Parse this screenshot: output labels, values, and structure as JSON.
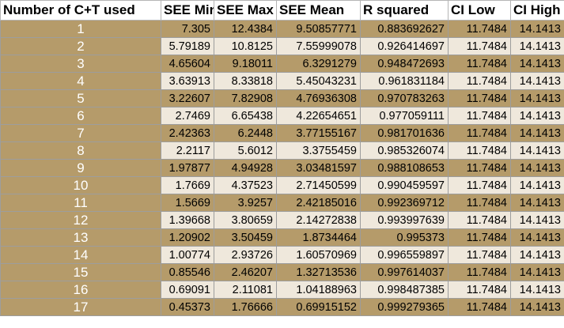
{
  "columns": [
    "Number of C+T used",
    "SEE Min",
    "SEE Max",
    "SEE Mean",
    "R squared",
    "CI Low",
    "CI High"
  ],
  "rows": [
    [
      "1",
      "7.305",
      "12.4384",
      "9.50857771",
      "0.883692627",
      "11.7484",
      "14.1413"
    ],
    [
      "2",
      "5.79189",
      "10.8125",
      "7.55999078",
      "0.926414697",
      "11.7484",
      "14.1413"
    ],
    [
      "3",
      "4.65604",
      "9.18011",
      "6.3291279",
      "0.948472693",
      "11.7484",
      "14.1413"
    ],
    [
      "4",
      "3.63913",
      "8.33818",
      "5.45043231",
      "0.961831184",
      "11.7484",
      "14.1413"
    ],
    [
      "5",
      "3.22607",
      "7.82908",
      "4.76936308",
      "0.970783263",
      "11.7484",
      "14.1413"
    ],
    [
      "6",
      "2.7469",
      "6.65438",
      "4.22654651",
      "0.977059111",
      "11.7484",
      "14.1413"
    ],
    [
      "7",
      "2.42363",
      "6.2448",
      "3.77155167",
      "0.981701636",
      "11.7484",
      "14.1413"
    ],
    [
      "8",
      "2.2117",
      "5.6012",
      "3.3755459",
      "0.985326074",
      "11.7484",
      "14.1413"
    ],
    [
      "9",
      "1.97877",
      "4.94928",
      "3.03481597",
      "0.988108653",
      "11.7484",
      "14.1413"
    ],
    [
      "10",
      "1.7669",
      "4.37523",
      "2.71450599",
      "0.990459597",
      "11.7484",
      "14.1413"
    ],
    [
      "11",
      "1.5669",
      "3.9257",
      "2.42185016",
      "0.992369712",
      "11.7484",
      "14.1413"
    ],
    [
      "12",
      "1.39668",
      "3.80659",
      "2.14272838",
      "0.993997639",
      "11.7484",
      "14.1413"
    ],
    [
      "13",
      "1.20902",
      "3.50459",
      "1.8734464",
      "0.995373",
      "11.7484",
      "14.1413"
    ],
    [
      "14",
      "1.00774",
      "2.93726",
      "1.60570969",
      "0.996559897",
      "11.7484",
      "14.1413"
    ],
    [
      "15",
      "0.85546",
      "2.46207",
      "1.32713536",
      "0.997614037",
      "11.7484",
      "14.1413"
    ],
    [
      "16",
      "0.69091",
      "2.11081",
      "1.04188963",
      "0.998487385",
      "11.7484",
      "14.1413"
    ],
    [
      "17",
      "0.45373",
      "1.76666",
      "0.69915152",
      "0.999279365",
      "11.7484",
      "14.1413"
    ]
  ],
  "colors": {
    "tan": "#b59b6a",
    "cream": "#efe8dc",
    "header_bg": "#ffffff"
  }
}
